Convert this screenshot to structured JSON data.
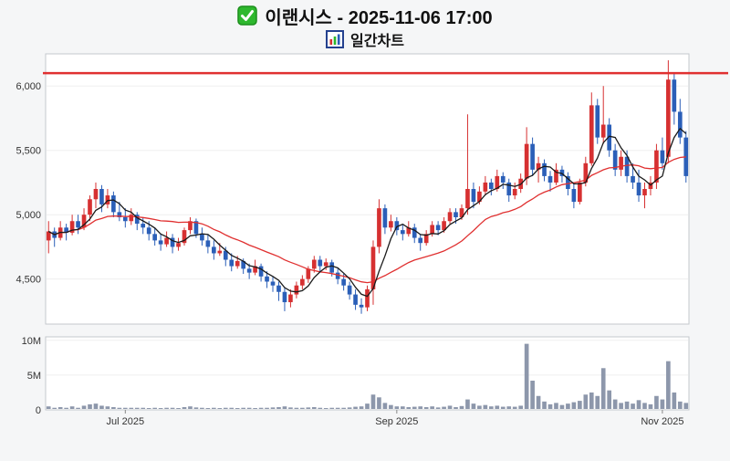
{
  "header": {
    "title": "이랜시스 - 2025-11-06 17:00",
    "subtitle": "일간차트"
  },
  "chart_data": {
    "type": "candlestick",
    "title": "이랜시스 - 2025-11-06 17:00",
    "subtitle": "일간차트",
    "price_ticks": [
      6000,
      5500,
      5000,
      4500
    ],
    "price_range": [
      4150,
      6250
    ],
    "volume_ticks": [
      {
        "v": 10,
        "label": "10M"
      },
      {
        "v": 5,
        "label": "5M"
      },
      {
        "v": 0,
        "label": "0"
      }
    ],
    "volume_range_millions": [
      0,
      10.5
    ],
    "x_ticks": [
      {
        "index": 13,
        "label": "Jul 2025"
      },
      {
        "index": 59,
        "label": "Sep 2025"
      },
      {
        "index": 104,
        "label": "Nov 2025"
      }
    ],
    "high_line": 6100,
    "ma_periods": {
      "fast": 5,
      "slow": 20
    },
    "colors": {
      "up": "#d63031",
      "down": "#2b5fb8",
      "ma_fast": "#1a1a1a",
      "ma_slow": "#e03030",
      "high_line": "#e03030",
      "volume": "#8d97ab",
      "panel_border": "#c4c8cc",
      "grid": "#efefef"
    },
    "ohlcv": [
      [
        4800,
        4950,
        4700,
        4870,
        0.5
      ],
      [
        4870,
        4900,
        4750,
        4820,
        0.3
      ],
      [
        4820,
        4950,
        4800,
        4900,
        0.4
      ],
      [
        4900,
        4930,
        4800,
        4860,
        0.3
      ],
      [
        4860,
        5000,
        4840,
        4950,
        0.5
      ],
      [
        4950,
        5000,
        4850,
        4900,
        0.3
      ],
      [
        4900,
        5050,
        4880,
        5000,
        0.6
      ],
      [
        5000,
        5150,
        4950,
        5120,
        0.8
      ],
      [
        5120,
        5250,
        5050,
        5200,
        0.9
      ],
      [
        5200,
        5230,
        5020,
        5080,
        0.6
      ],
      [
        5080,
        5200,
        5050,
        5150,
        0.5
      ],
      [
        5150,
        5180,
        4980,
        5020,
        0.4
      ],
      [
        5020,
        5100,
        4950,
        4980,
        0.3
      ],
      [
        4980,
        5050,
        4900,
        4950,
        0.3
      ],
      [
        4950,
        5050,
        4920,
        5000,
        0.3
      ],
      [
        5000,
        5020,
        4880,
        4930,
        0.3
      ],
      [
        4930,
        4980,
        4850,
        4900,
        0.3
      ],
      [
        4900,
        4950,
        4800,
        4850,
        0.25
      ],
      [
        4850,
        4900,
        4760,
        4800,
        0.3
      ],
      [
        4800,
        4850,
        4720,
        4770,
        0.25
      ],
      [
        4770,
        4870,
        4750,
        4820,
        0.3
      ],
      [
        4820,
        4850,
        4700,
        4750,
        0.3
      ],
      [
        4750,
        4820,
        4720,
        4780,
        0.25
      ],
      [
        4780,
        4900,
        4760,
        4880,
        0.4
      ],
      [
        4880,
        4980,
        4850,
        4950,
        0.5
      ],
      [
        4950,
        4970,
        4820,
        4850,
        0.35
      ],
      [
        4850,
        4900,
        4760,
        4800,
        0.3
      ],
      [
        4800,
        4850,
        4700,
        4750,
        0.25
      ],
      [
        4750,
        4800,
        4650,
        4700,
        0.3
      ],
      [
        4700,
        4780,
        4680,
        4720,
        0.25
      ],
      [
        4720,
        4750,
        4600,
        4650,
        0.3
      ],
      [
        4650,
        4700,
        4560,
        4600,
        0.3
      ],
      [
        4600,
        4680,
        4580,
        4640,
        0.25
      ],
      [
        4640,
        4660,
        4540,
        4580,
        0.3
      ],
      [
        4580,
        4620,
        4500,
        4550,
        0.3
      ],
      [
        4550,
        4650,
        4530,
        4600,
        0.25
      ],
      [
        4600,
        4620,
        4480,
        4520,
        0.3
      ],
      [
        4520,
        4560,
        4430,
        4480,
        0.3
      ],
      [
        4480,
        4520,
        4400,
        4450,
        0.35
      ],
      [
        4450,
        4480,
        4330,
        4400,
        0.4
      ],
      [
        4400,
        4430,
        4250,
        4320,
        0.5
      ],
      [
        4320,
        4420,
        4280,
        4380,
        0.35
      ],
      [
        4380,
        4480,
        4350,
        4450,
        0.3
      ],
      [
        4450,
        4530,
        4420,
        4500,
        0.3
      ],
      [
        4500,
        4600,
        4470,
        4580,
        0.35
      ],
      [
        4580,
        4680,
        4550,
        4650,
        0.4
      ],
      [
        4650,
        4680,
        4560,
        4600,
        0.3
      ],
      [
        4600,
        4660,
        4570,
        4630,
        0.25
      ],
      [
        4630,
        4650,
        4520,
        4550,
        0.3
      ],
      [
        4550,
        4580,
        4460,
        4500,
        0.3
      ],
      [
        4500,
        4540,
        4410,
        4450,
        0.3
      ],
      [
        4450,
        4480,
        4340,
        4380,
        0.35
      ],
      [
        4380,
        4420,
        4260,
        4300,
        0.45
      ],
      [
        4300,
        4350,
        4230,
        4280,
        0.5
      ],
      [
        4280,
        4450,
        4250,
        4420,
        0.9
      ],
      [
        4420,
        4800,
        4300,
        4750,
        2.2
      ],
      [
        4750,
        5120,
        4700,
        5050,
        1.8
      ],
      [
        5050,
        5080,
        4850,
        4900,
        1.0
      ],
      [
        4900,
        5000,
        4870,
        4950,
        0.7
      ],
      [
        4950,
        4980,
        4840,
        4880,
        0.5
      ],
      [
        4880,
        4920,
        4800,
        4850,
        0.5
      ],
      [
        4850,
        4950,
        4830,
        4900,
        0.4
      ],
      [
        4900,
        4930,
        4780,
        4820,
        0.45
      ],
      [
        4820,
        4850,
        4720,
        4780,
        0.5
      ],
      [
        4780,
        4880,
        4760,
        4850,
        0.4
      ],
      [
        4850,
        4950,
        4830,
        4920,
        0.5
      ],
      [
        4920,
        4950,
        4840,
        4880,
        0.35
      ],
      [
        4880,
        4980,
        4860,
        4950,
        0.45
      ],
      [
        4950,
        5050,
        4930,
        5020,
        0.6
      ],
      [
        5020,
        5050,
        4930,
        4980,
        0.4
      ],
      [
        4980,
        5080,
        4960,
        5050,
        0.55
      ],
      [
        5050,
        5780,
        5000,
        5200,
        1.5
      ],
      [
        5200,
        5250,
        5050,
        5100,
        0.9
      ],
      [
        5100,
        5220,
        5080,
        5180,
        0.6
      ],
      [
        5180,
        5300,
        5150,
        5250,
        0.7
      ],
      [
        5250,
        5280,
        5150,
        5200,
        0.5
      ],
      [
        5200,
        5350,
        5180,
        5300,
        0.6
      ],
      [
        5300,
        5330,
        5200,
        5250,
        0.45
      ],
      [
        5250,
        5280,
        5100,
        5150,
        0.5
      ],
      [
        5150,
        5250,
        5120,
        5200,
        0.45
      ],
      [
        5200,
        5320,
        5170,
        5280,
        0.6
      ],
      [
        5280,
        5680,
        5230,
        5550,
        9.5
      ],
      [
        5550,
        5600,
        5300,
        5350,
        4.2
      ],
      [
        5350,
        5450,
        5250,
        5400,
        2.0
      ],
      [
        5400,
        5430,
        5260,
        5300,
        1.2
      ],
      [
        5300,
        5340,
        5180,
        5250,
        0.8
      ],
      [
        5250,
        5400,
        5230,
        5350,
        1.0
      ],
      [
        5350,
        5380,
        5250,
        5300,
        0.7
      ],
      [
        5300,
        5330,
        5150,
        5200,
        0.9
      ],
      [
        5200,
        5250,
        5050,
        5100,
        1.1
      ],
      [
        5100,
        5280,
        5080,
        5250,
        1.3
      ],
      [
        5250,
        5450,
        5220,
        5400,
        2.2
      ],
      [
        5400,
        5950,
        5380,
        5850,
        2.5
      ],
      [
        5850,
        5900,
        5550,
        5600,
        2.0
      ],
      [
        5600,
        6000,
        5550,
        5700,
        6.0
      ],
      [
        5700,
        5750,
        5450,
        5500,
        2.8
      ],
      [
        5500,
        5550,
        5300,
        5350,
        1.5
      ],
      [
        5350,
        5500,
        5300,
        5450,
        1.0
      ],
      [
        5450,
        5500,
        5250,
        5300,
        1.2
      ],
      [
        5300,
        5400,
        5200,
        5250,
        0.9
      ],
      [
        5250,
        5350,
        5100,
        5150,
        1.4
      ],
      [
        5150,
        5250,
        5050,
        5200,
        1.0
      ],
      [
        5200,
        5300,
        5150,
        5250,
        0.8
      ],
      [
        5250,
        5550,
        5200,
        5500,
        2.0
      ],
      [
        5500,
        5600,
        5350,
        5400,
        1.5
      ],
      [
        5450,
        6200,
        5400,
        6050,
        7.0
      ],
      [
        6050,
        6100,
        5700,
        5800,
        2.5
      ],
      [
        5800,
        5900,
        5550,
        5600,
        1.2
      ],
      [
        5600,
        5650,
        5250,
        5300,
        1.0
      ]
    ]
  }
}
